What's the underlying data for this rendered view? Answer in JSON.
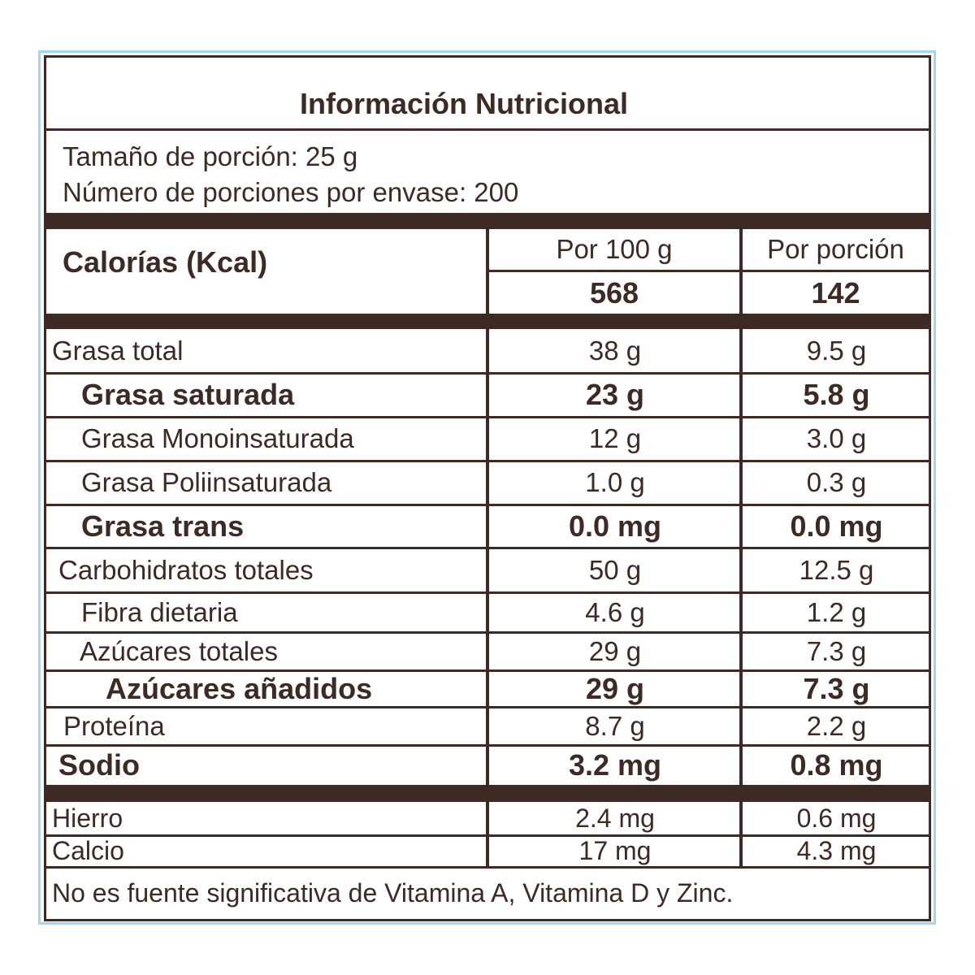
{
  "header": {
    "title": "Información Nutricional"
  },
  "serving": {
    "size": "Tamaño de porción: 25 g",
    "servings": "Número de porciones por envase: 200"
  },
  "calories": {
    "label": "Calorías (Kcal)",
    "col1": "Por 100 g",
    "col2": "Por porción",
    "per100": "568",
    "perServing": "142"
  },
  "table": {
    "rows": [
      [
        "Grasa total",
        "38 g",
        "9.5 g"
      ],
      [
        "Grasa saturada",
        "23 g",
        "5.8 g"
      ],
      [
        "Grasa Monoinsaturada",
        "12 g",
        "3.0 g"
      ],
      [
        "Grasa Poliinsaturada",
        "1.0 g",
        "0.3 g"
      ],
      [
        "Grasa trans",
        "0.0 mg",
        "0.0 mg"
      ],
      [
        "Carbohidratos totales",
        "50 g",
        "12.5 g"
      ],
      [
        "Fibra dietaria",
        "4.6 g",
        "1.2 g"
      ],
      [
        "Azúcares totales",
        "29 g",
        "7.3 g"
      ],
      [
        "Azúcares añadidos",
        "29 g",
        "7.3 g"
      ],
      [
        "Proteína",
        "8.7 g",
        "2.2 g"
      ],
      [
        "Sodio",
        "3.2 mg",
        "0.8 mg"
      ]
    ]
  },
  "minerals": {
    "rows": [
      [
        "Hierro",
        "2.4 mg",
        "0.6 mg"
      ],
      [
        "Calcio",
        "17 mg",
        "4.3 mg"
      ]
    ]
  },
  "footnote": "No es fuente significativa de Vitamina A, Vitamina D y Zinc."
}
